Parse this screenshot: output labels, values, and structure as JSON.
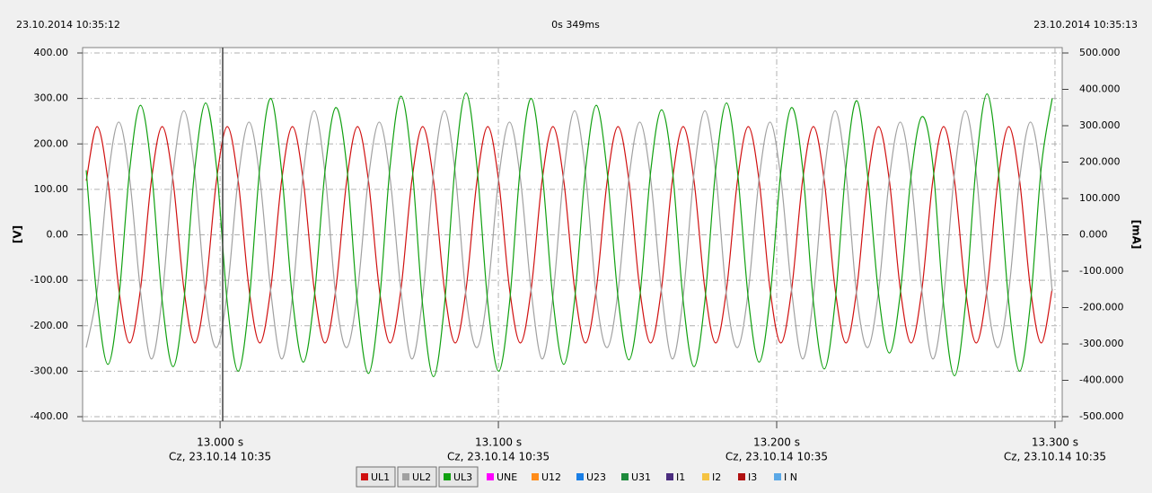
{
  "chart_data": {
    "type": "line",
    "header_left": "23.10.2014 10:35:12",
    "header_center": "0s 349ms",
    "header_right": "23.10.2014 10:35:13",
    "ylabel": "[V]",
    "y2label": "[mA]",
    "xlim": [
      12.9506,
      13.3026
    ],
    "xticks": [
      {
        "value": 13.0,
        "label": "13.000 s"
      },
      {
        "value": 13.1,
        "label": "13.100 s"
      },
      {
        "value": 13.2,
        "label": "13.200 s"
      },
      {
        "value": 13.3,
        "label": "13.300 s"
      }
    ],
    "xtick_sublabels": [
      "Cz, 23.10.14 10:35",
      "Cz, 23.10.14 10:35",
      "Cz, 23.10.14 10:35",
      "Cz, 23.10.14 10:35"
    ],
    "ylim": [
      -400,
      400
    ],
    "yticks": [
      {
        "value": 400,
        "label": "400.00"
      },
      {
        "value": 300,
        "label": "300.00"
      },
      {
        "value": 200,
        "label": "200.00"
      },
      {
        "value": 100,
        "label": "100.00"
      },
      {
        "value": 0,
        "label": "0.00"
      },
      {
        "value": -100,
        "label": "-100.00"
      },
      {
        "value": -200,
        "label": "-200.00"
      },
      {
        "value": -300,
        "label": "-300.00"
      },
      {
        "value": -400,
        "label": "-400.00"
      }
    ],
    "y2lim": [
      -500,
      500
    ],
    "y2ticks": [
      {
        "value": 500,
        "label": "500.000"
      },
      {
        "value": 400,
        "label": "400.000"
      },
      {
        "value": 300,
        "label": "300.000"
      },
      {
        "value": 200,
        "label": "200.000"
      },
      {
        "value": 100,
        "label": "100.000"
      },
      {
        "value": 0,
        "label": "0.000"
      },
      {
        "value": -100,
        "label": "-100.000"
      },
      {
        "value": -200,
        "label": "-200.000"
      },
      {
        "value": -300,
        "label": "-300.000"
      },
      {
        "value": -400,
        "label": "-400.000"
      },
      {
        "value": -500,
        "label": "-500.000"
      }
    ],
    "grid": true,
    "x": [
      12.9519,
      12.9558,
      12.9597,
      12.9636,
      12.9675,
      12.9714,
      12.9753,
      12.9792,
      12.9831,
      12.987,
      12.9909,
      12.9948,
      12.9987,
      13.0026,
      13.0065,
      13.0104,
      13.0143,
      13.0182,
      13.0221,
      13.026,
      13.0299,
      13.0338,
      13.0377,
      13.0416,
      13.0455,
      13.0494,
      13.0533,
      13.0572,
      13.0611,
      13.065,
      13.0689,
      13.0728,
      13.0767,
      13.0806,
      13.0845,
      13.0884,
      13.0923,
      13.0962,
      13.1001,
      13.104,
      13.1079,
      13.1118,
      13.1157,
      13.1196,
      13.1235,
      13.1274,
      13.1313,
      13.1352,
      13.1391,
      13.143,
      13.1469,
      13.1508,
      13.1547,
      13.1586,
      13.1625,
      13.1664,
      13.1703,
      13.1742,
      13.1781,
      13.182,
      13.1859,
      13.1898,
      13.1937,
      13.1976,
      13.2015,
      13.2054,
      13.2093,
      13.2132,
      13.2171,
      13.221,
      13.2249,
      13.2288,
      13.2327,
      13.2366,
      13.2405,
      13.2444,
      13.2483,
      13.2522,
      13.2561,
      13.26,
      13.2639,
      13.2678,
      13.2717,
      13.2756,
      13.2795,
      13.2834,
      13.2873,
      13.2912,
      13.2951,
      13.299
    ],
    "series": [
      {
        "name": "UL1",
        "color": "#d01010",
        "values": [
          119,
          238,
          119,
          -119,
          -238,
          -119,
          119,
          238,
          119,
          -119,
          -238,
          -119,
          119,
          238,
          119,
          -119,
          -238,
          -119,
          119,
          238,
          119,
          -119,
          -238,
          -119,
          119,
          238,
          119,
          -119,
          -238,
          -119,
          119,
          238,
          119,
          -119,
          -238,
          -119,
          119,
          238,
          119,
          -119,
          -238,
          -119,
          119,
          238,
          119,
          -119,
          -238,
          -119,
          119,
          238,
          119,
          -119,
          -238,
          -119,
          119,
          238,
          119,
          -119,
          -238,
          -119,
          119,
          238,
          119,
          -119,
          -238,
          -119,
          119,
          238,
          119,
          -119,
          -238,
          -119,
          119,
          238,
          119,
          -119,
          -238,
          -119,
          119,
          238,
          119,
          -119,
          -238,
          -119,
          119,
          238,
          119,
          -119,
          -238,
          -119
        ]
      },
      {
        "name": "UL2",
        "color": "#a0a0a0",
        "values": [
          -248,
          -124,
          124,
          248,
          124,
          -124,
          -273,
          -136,
          136,
          273,
          136,
          -136,
          -248,
          -124,
          124,
          248,
          124,
          -124,
          -273,
          -136,
          136,
          273,
          136,
          -136,
          -248,
          -124,
          124,
          248,
          124,
          -124,
          -273,
          -136,
          136,
          273,
          136,
          -136,
          -248,
          -124,
          124,
          248,
          124,
          -124,
          -273,
          -136,
          136,
          273,
          136,
          -136,
          -248,
          -124,
          124,
          248,
          124,
          -124,
          -273,
          -136,
          136,
          273,
          136,
          -136,
          -248,
          -124,
          124,
          248,
          124,
          -124,
          -273,
          -136,
          136,
          273,
          136,
          -136,
          -248,
          -124,
          124,
          248,
          124,
          -124,
          -273,
          -136,
          136,
          273,
          136,
          -136,
          -248,
          -124,
          124,
          248,
          124,
          -124
        ]
      },
      {
        "name": "UL3",
        "color": "#10a010",
        "values": [
          142,
          -142,
          -285,
          -142,
          142,
          285,
          145,
          -145,
          -290,
          -145,
          145,
          290,
          150,
          -150,
          -300,
          -150,
          150,
          300,
          140,
          -140,
          -280,
          -140,
          140,
          280,
          152,
          -152,
          -305,
          -152,
          152,
          305,
          156,
          -156,
          -312,
          -156,
          156,
          312,
          150,
          -150,
          -300,
          -150,
          150,
          300,
          142,
          -142,
          -285,
          -142,
          142,
          285,
          138,
          -138,
          -275,
          -138,
          138,
          275,
          145,
          -145,
          -290,
          -145,
          145,
          290,
          140,
          -140,
          -280,
          -140,
          140,
          280,
          148,
          -148,
          -295,
          -148,
          148,
          295,
          130,
          -130,
          -260,
          -130,
          130,
          260,
          155,
          -155,
          -310,
          -155,
          155,
          310,
          150,
          -150,
          -300,
          -150,
          150,
          300
        ]
      }
    ],
    "inactive_channels": [
      {
        "name": "UNE",
        "color": "#ff00ff"
      },
      {
        "name": "U12",
        "color": "#ff8c1a"
      },
      {
        "name": "U23",
        "color": "#1a7fe6"
      },
      {
        "name": "U31",
        "color": "#1e8a3c"
      },
      {
        "name": "I1",
        "color": "#4b2d7f"
      },
      {
        "name": "I2",
        "color": "#f5c342"
      },
      {
        "name": "I3",
        "color": "#b01010"
      },
      {
        "name": "I N",
        "color": "#5aa8e6"
      }
    ]
  }
}
